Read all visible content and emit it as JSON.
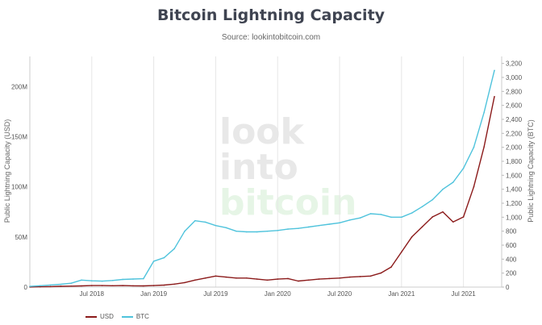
{
  "title": "Bitcoin Lightning Capacity",
  "subtitle": "Source: lookintobitcoin.com",
  "watermark": [
    "look",
    "into",
    "bitcoin"
  ],
  "colors": {
    "usd": "#8b1a1a",
    "btc": "#4fc3dc",
    "wm_gray": "#e8e8e8",
    "wm_green": "#e6f5e6"
  },
  "chart_data": {
    "type": "line",
    "title": "Bitcoin Lightning Capacity",
    "x": [
      "2018-01",
      "2018-02",
      "2018-03",
      "2018-04",
      "2018-05",
      "2018-06",
      "2018-07",
      "2018-08",
      "2018-09",
      "2018-10",
      "2018-11",
      "2018-12",
      "2019-01",
      "2019-02",
      "2019-03",
      "2019-04",
      "2019-05",
      "2019-06",
      "2019-07",
      "2019-08",
      "2019-09",
      "2019-10",
      "2019-11",
      "2019-12",
      "2020-01",
      "2020-02",
      "2020-03",
      "2020-04",
      "2020-05",
      "2020-06",
      "2020-07",
      "2020-08",
      "2020-09",
      "2020-10",
      "2020-11",
      "2020-12",
      "2021-01",
      "2021-02",
      "2021-03",
      "2021-04",
      "2021-05",
      "2021-06",
      "2021-07",
      "2021-08",
      "2021-09",
      "2021-10"
    ],
    "x_ticks": [
      "Jul 2018",
      "Jan 2019",
      "Jul 2019",
      "Jan 2020",
      "Jul 2020",
      "Jan 2021",
      "Jul 2021"
    ],
    "series": [
      {
        "name": "USD",
        "axis": "left",
        "values": [
          0.1,
          0.3,
          0.5,
          0.8,
          1.0,
          1.2,
          1.5,
          1.5,
          1.4,
          1.5,
          1.3,
          1.2,
          1.5,
          2.0,
          3.0,
          4.5,
          7.0,
          9.0,
          11.0,
          10.0,
          9.0,
          9.0,
          8.0,
          7.0,
          8.0,
          8.5,
          6.0,
          7.0,
          8.0,
          8.5,
          9.0,
          10.0,
          10.5,
          11.0,
          14.0,
          20.0,
          35.0,
          50.0,
          60.0,
          70.0,
          75.0,
          65.0,
          70.0,
          100.0,
          140.0,
          190.0
        ]
      },
      {
        "name": "BTC",
        "axis": "right",
        "values": [
          10,
          20,
          30,
          40,
          55,
          100,
          90,
          85,
          95,
          110,
          115,
          120,
          370,
          420,
          550,
          800,
          950,
          930,
          880,
          850,
          800,
          790,
          790,
          800,
          810,
          830,
          840,
          860,
          880,
          900,
          920,
          960,
          990,
          1050,
          1040,
          1000,
          1000,
          1060,
          1150,
          1250,
          1400,
          1500,
          1700,
          2000,
          2500,
          3100
        ]
      }
    ],
    "ylabel_left": "Public Lightning Capacity (USD)",
    "ylabel_right": "Public Lightning Capacity (BTC)",
    "ylim_left": [
      0,
      230000000
    ],
    "ylim_right": [
      0,
      3300
    ],
    "yticks_left": [
      "0",
      "50M",
      "100M",
      "150M",
      "200M"
    ],
    "yticks_right": [
      "0",
      "200",
      "400",
      "600",
      "800",
      "1,000",
      "1,200",
      "1,400",
      "1,600",
      "1,800",
      "2,000",
      "2,200",
      "2,400",
      "2,600",
      "2,800",
      "3,000",
      "3,200"
    ],
    "grid": "vertical",
    "legend": "bottom-left"
  }
}
